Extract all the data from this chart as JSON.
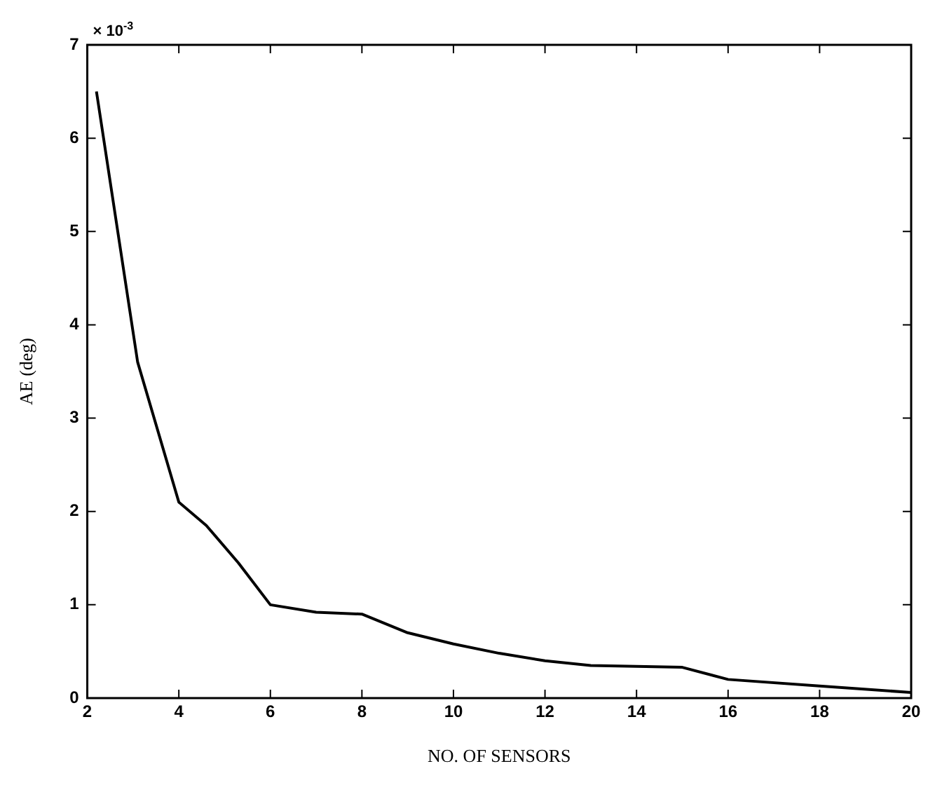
{
  "chart_data": {
    "type": "line",
    "xlabel": "NO. OF SENSORS",
    "ylabel": "AE (deg)",
    "annotations": [
      "× 10$^{-3}$"
    ],
    "x": [
      2.2,
      3.1,
      4,
      4.6,
      5.3,
      6,
      7,
      8,
      9,
      10,
      11,
      12,
      13,
      15,
      16,
      18,
      20
    ],
    "series": [
      {
        "color": "#000000",
        "values": [
          6.5,
          3.6,
          2.1,
          1.85,
          1.45,
          1.0,
          0.92,
          0.9,
          0.7,
          0.58,
          0.48,
          0.4,
          0.35,
          0.33,
          0.2,
          0.13,
          0.06
        ]
      }
    ],
    "xlim": [
      2,
      20
    ],
    "xticks": [
      2,
      4,
      6,
      8,
      10,
      12,
      14,
      16,
      18,
      20
    ],
    "ylim": [
      0,
      7
    ],
    "yticks": [
      0,
      1,
      2,
      3,
      4,
      5,
      6,
      7
    ],
    "grid": false,
    "legend": false,
    "marker": "none",
    "line_style": "solid"
  }
}
